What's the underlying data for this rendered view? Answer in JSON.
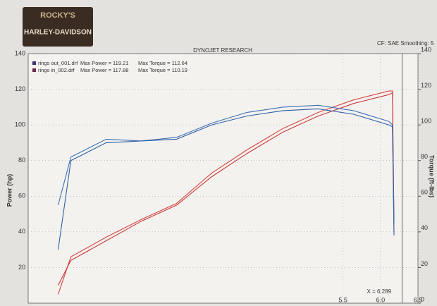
{
  "chart_data": {
    "type": "line",
    "brand_top": "ROCKY'S",
    "brand_bottom": "HARLEY-DAVIDSON",
    "title": "DYNOJET RESEARCH",
    "settings_text": "CF: SAE  Smoothing: 5",
    "legend": [
      {
        "file": "rings out_001.drf",
        "power": "Max Power = 119.21",
        "torque": "Max Torque = 112.64",
        "color": "#3b3170"
      },
      {
        "file": "rings in_002.drf",
        "power": "Max Power = 117.88",
        "torque": "Max Torque = 110.19",
        "color": "#6a2a4a"
      }
    ],
    "ylabel": "Power (hp)",
    "y2label": "Torque (ft-lbs)",
    "annotation": "X = 6.289",
    "cursor_x": 6.289,
    "x": [
      1.7,
      1.87,
      2.34,
      2.81,
      3.28,
      3.75,
      4.22,
      4.7,
      5.17,
      5.64,
      6.11,
      6.16,
      6.18
    ],
    "series": [
      {
        "color": "#d8433f",
        "values": [
          5,
          26,
          37,
          47,
          56,
          73,
          86,
          98,
          107,
          114,
          119,
          119,
          40
        ]
      },
      {
        "color": "#c93a3a",
        "values": [
          10,
          24,
          35,
          46,
          55,
          71,
          84,
          96,
          105,
          112,
          117,
          118,
          45
        ]
      },
      {
        "color": "#3f6fb5",
        "axis": "y2",
        "values": [
          55,
          82,
          92,
          91,
          93,
          101,
          107,
          110,
          111,
          108,
          102,
          100,
          45
        ]
      },
      {
        "color": "#2f5fa5",
        "axis": "y2",
        "values": [
          30,
          80,
          90,
          91,
          92,
          100,
          105,
          108,
          109,
          106,
          100,
          99,
          38
        ]
      }
    ],
    "xlim": [
      1.3,
      6.5
    ],
    "xticks": [
      5.5,
      {
        "value": 6,
        "label": "6.0"
      },
      6.5
    ],
    "ylim": [
      0,
      140
    ],
    "yticks": [
      20,
      40,
      60,
      80,
      100,
      120,
      140
    ],
    "y2lim": [
      0,
      140
    ],
    "y2ticks": [
      0,
      20,
      40,
      60,
      80,
      100,
      120,
      140
    ],
    "grid": true
  }
}
